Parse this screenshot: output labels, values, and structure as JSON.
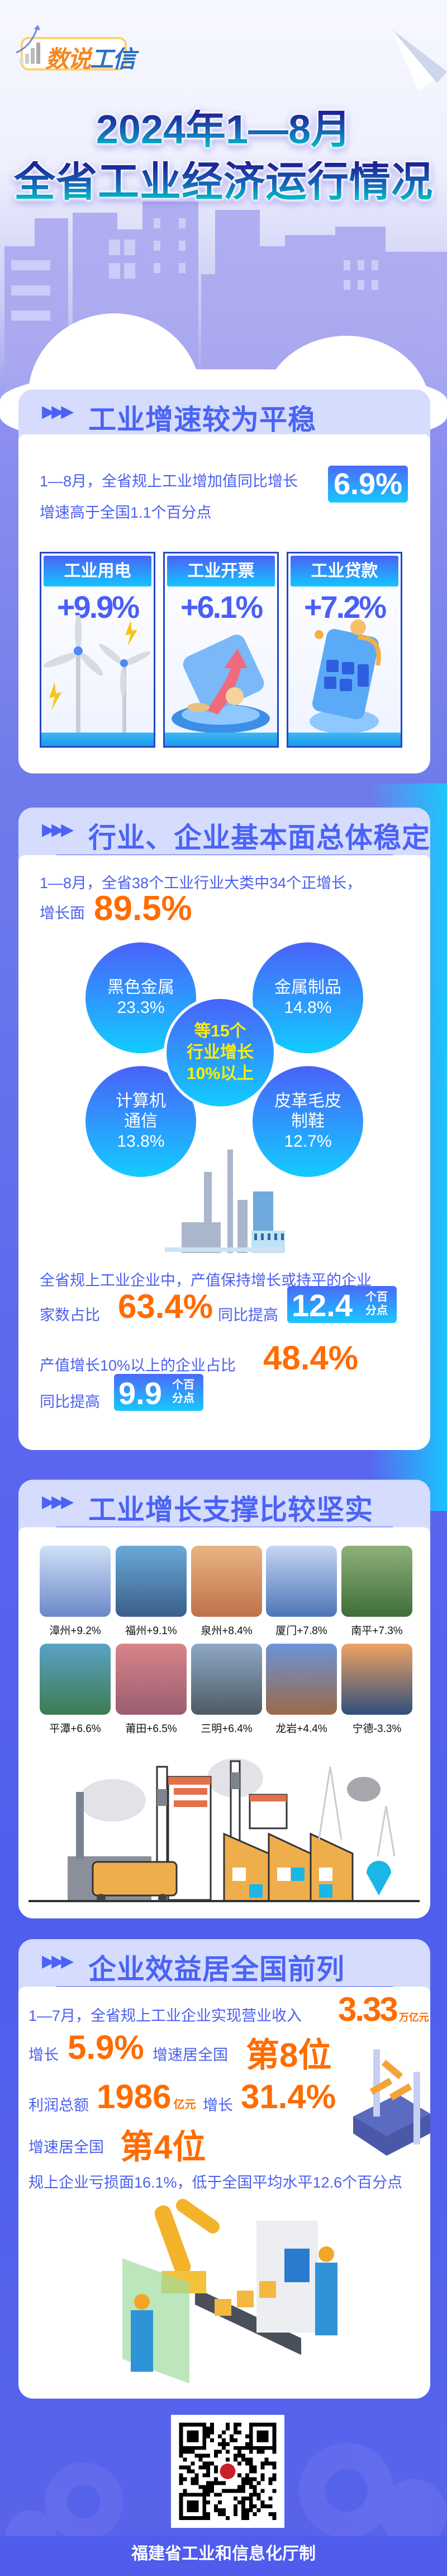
{
  "logo": {
    "part1": "数说",
    "part2": "工信"
  },
  "title": {
    "line1": "2024年1—8月",
    "line2": "全省工业经济运行情况"
  },
  "section1": {
    "heading": "工业增速较为平稳",
    "text1": "1—8月，全省规上工业增加值同比增长",
    "highlight": "6.9%",
    "text2": "增速高于全国1.1个百分点",
    "metrics": [
      {
        "label": "工业用电",
        "value": "+9.9%",
        "icon": "wind-turbine-icon"
      },
      {
        "label": "工业开票",
        "value": "+6.1%",
        "icon": "invoice-growth-icon"
      },
      {
        "label": "工业贷款",
        "value": "+7.2%",
        "icon": "calculator-loan-icon"
      }
    ]
  },
  "section2": {
    "heading": "行业、企业基本面总体稳定",
    "text1": "1—8月，全省38个工业行业大类中34个正增长，",
    "text2_label": "增长面",
    "text2_value": "89.5%",
    "bubbles": [
      {
        "name": "黑色金属",
        "value": "23.3%"
      },
      {
        "name": "金属制品",
        "value": "14.8%"
      },
      {
        "name": "计算机\n通信",
        "name1": "计算机",
        "name2": "通信",
        "value": "13.8%"
      },
      {
        "name": "皮革毛皮\n制鞋",
        "name1": "皮革毛皮",
        "name2": "制鞋",
        "value": "12.7%"
      }
    ],
    "center": {
      "line1": "等15个",
      "line2": "行业增长",
      "line3": "10%以上"
    },
    "text3": "全省规上工业企业中，产值保持增长或持平的企业",
    "text4_label": "家数占比",
    "text4_value": "63.4%",
    "text4_mid": "同比提高",
    "text4_pill": "12.4",
    "unit_top": "个百",
    "unit_bottom": "分点",
    "text5_label": "产值增长10%以上的企业占比",
    "text5_value": "48.4%",
    "text6_label": "同比提高",
    "text6_pill": "9.9"
  },
  "section3": {
    "heading": "工业增长支撑比较坚实",
    "cities": [
      {
        "label": "漳州+9.2%",
        "colors": [
          "#cfe0f7",
          "#6a88c6"
        ]
      },
      {
        "label": "福州+9.1%",
        "colors": [
          "#6aa9d8",
          "#3a5f88"
        ]
      },
      {
        "label": "泉州+8.4%",
        "colors": [
          "#e9b583",
          "#c0704a"
        ]
      },
      {
        "label": "厦门+7.8%",
        "colors": [
          "#c5d5f3",
          "#4c76b8"
        ]
      },
      {
        "label": "南平+7.3%",
        "colors": [
          "#8fb07a",
          "#3f6e3a"
        ]
      },
      {
        "label": "平潭+6.6%",
        "colors": [
          "#5aa2c6",
          "#3d7b52"
        ]
      },
      {
        "label": "莆田+6.5%",
        "colors": [
          "#d9848a",
          "#9a5e70"
        ]
      },
      {
        "label": "三明+6.4%",
        "colors": [
          "#8fa8c8",
          "#4e5a62"
        ]
      },
      {
        "label": "龙岩+4.4%",
        "colors": [
          "#6c93d8",
          "#9a6a48"
        ]
      },
      {
        "label": "宁德-3.3%",
        "colors": [
          "#f0a262",
          "#2f4f7c"
        ]
      }
    ]
  },
  "section4": {
    "heading": "企业效益居全国前列",
    "line1_text": "1—7月，全省规上工业企业实现营业收入",
    "line1_value": "3.33",
    "line1_unit": "万亿元",
    "line2_label": "增长",
    "line2_value": "5.9%",
    "line2_mid": "增速居全国",
    "line2_rank": "第8位",
    "line3_label": "利润总额",
    "line3_value": "1986",
    "line3_unit": "亿元",
    "line3_mid": "增长",
    "line3_growth": "31.4%",
    "line4_label": "增速居全国",
    "line4_rank": "第4位",
    "line5": "规上企业亏损面16.1%，低于全国平均水平12.6个百分点"
  },
  "footer": {
    "text": "福建省工业和信息化厅制"
  },
  "colors": {
    "accent": "#4a63f5",
    "highlight": "#ff6c00",
    "center_text": "#ffee00",
    "footer": "#4f5cec"
  }
}
